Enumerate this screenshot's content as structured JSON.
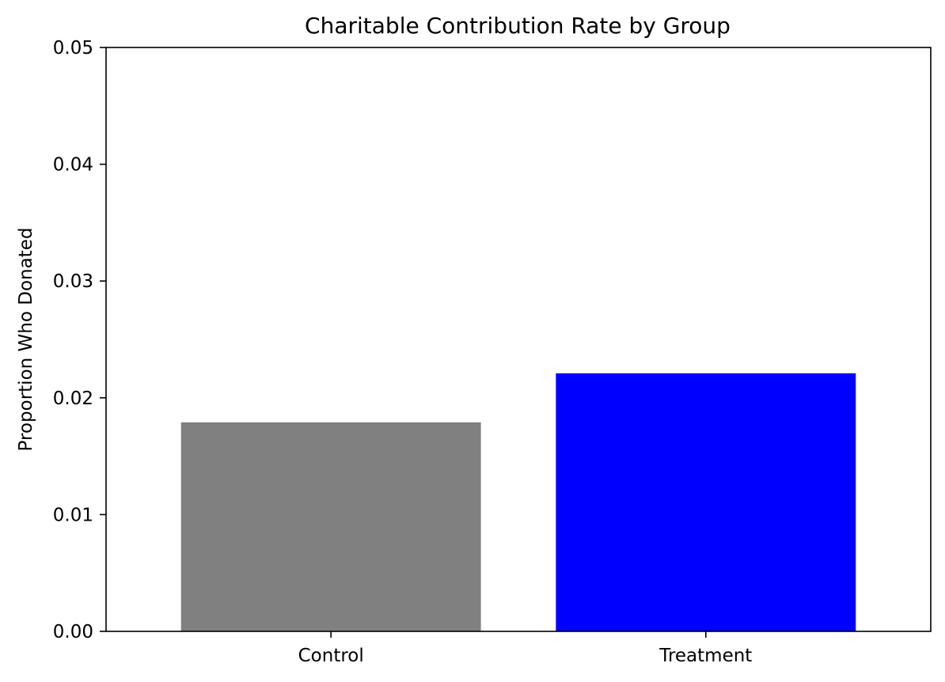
{
  "chart_data": {
    "type": "bar",
    "title": "Charitable Contribution Rate by Group",
    "xlabel": "",
    "ylabel": "Proportion Who Donated",
    "categories": [
      "Control",
      "Treatment"
    ],
    "values": [
      0.0179,
      0.0221
    ],
    "colors": [
      "#808080",
      "#0000ff"
    ],
    "ylim": [
      0,
      0.05
    ],
    "yticks": [
      "0.00",
      "0.01",
      "0.02",
      "0.03",
      "0.04",
      "0.05"
    ],
    "grid": false,
    "legend": "none"
  }
}
